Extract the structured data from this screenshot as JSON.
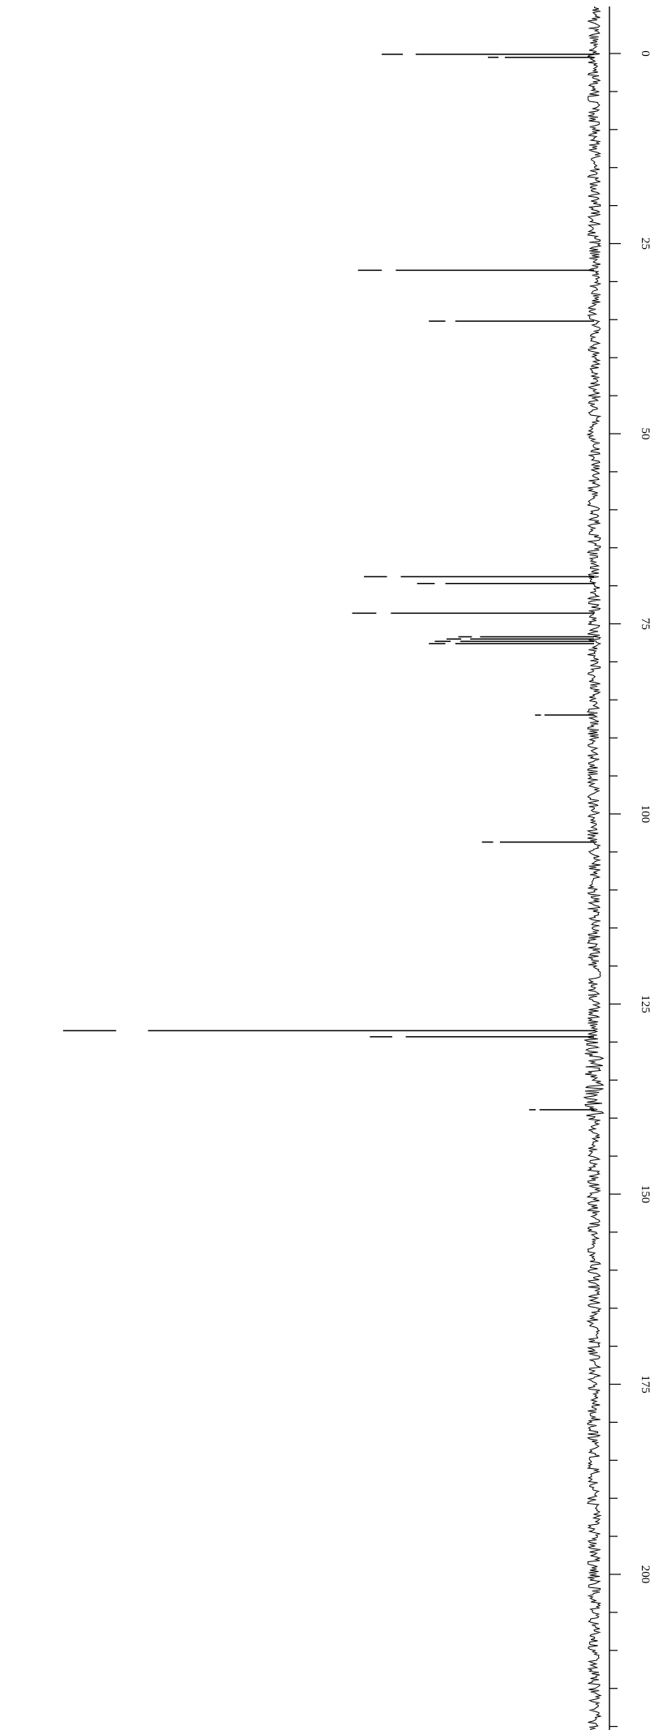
{
  "chart_data": {
    "type": "line",
    "orientation": "vertical",
    "title": "",
    "xlabel": "",
    "ylabel": "",
    "axis": {
      "min": -5,
      "max": 220,
      "major_ticks": [
        0,
        25,
        50,
        75,
        100,
        125,
        150,
        175,
        200
      ],
      "minor_step": 5,
      "tick_labels": [
        "0",
        "25",
        "50",
        "75",
        "100",
        "125",
        "150",
        "175",
        "200"
      ],
      "label_rotation": "rotated 90 degrees"
    },
    "peaks": [
      {
        "position": 0.1,
        "intensity": 0.36
      },
      {
        "position": 0.5,
        "intensity": 0.18
      },
      {
        "position": 28.5,
        "intensity": 0.4
      },
      {
        "position": 35.2,
        "intensity": 0.28
      },
      {
        "position": 68.8,
        "intensity": 0.39
      },
      {
        "position": 69.7,
        "intensity": 0.3
      },
      {
        "position": 73.6,
        "intensity": 0.41
      },
      {
        "position": 76.7,
        "intensity": 0.23
      },
      {
        "position": 77.0,
        "intensity": 0.25
      },
      {
        "position": 77.3,
        "intensity": 0.27
      },
      {
        "position": 77.6,
        "intensity": 0.28
      },
      {
        "position": 87.0,
        "intensity": 0.1
      },
      {
        "position": 103.7,
        "intensity": 0.19
      },
      {
        "position": 128.5,
        "intensity": 0.9
      },
      {
        "position": 129.3,
        "intensity": 0.38
      },
      {
        "position": 138.9,
        "intensity": 0.11
      }
    ],
    "grid": false,
    "legend": "none",
    "line_color": "#000000"
  }
}
